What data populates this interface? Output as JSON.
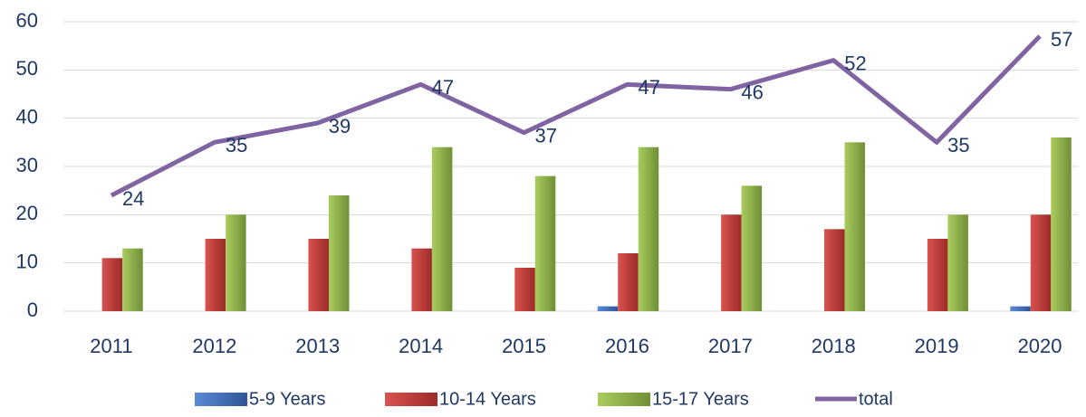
{
  "chart_data": {
    "type": "bar-line",
    "categories": [
      "2011",
      "2012",
      "2013",
      "2014",
      "2015",
      "2016",
      "2017",
      "2018",
      "2019",
      "2020"
    ],
    "series": [
      {
        "name": "5-9 Years",
        "type": "bar",
        "color": "#4472c4",
        "values": [
          0,
          0,
          0,
          0,
          0,
          1,
          0,
          0,
          0,
          1
        ]
      },
      {
        "name": "10-14 Years",
        "type": "bar",
        "color": "#c0504d",
        "values": [
          11,
          15,
          15,
          13,
          9,
          12,
          20,
          17,
          15,
          20
        ]
      },
      {
        "name": "15-17 Years",
        "type": "bar",
        "color": "#9bbb59",
        "values": [
          13,
          20,
          24,
          34,
          28,
          34,
          26,
          35,
          20,
          36
        ]
      },
      {
        "name": "total",
        "type": "line",
        "color": "#8064a2",
        "values": [
          24,
          35,
          39,
          47,
          37,
          47,
          46,
          52,
          35,
          57
        ],
        "data_labels": true
      }
    ],
    "ylim": [
      0,
      60
    ],
    "yticks": [
      0,
      10,
      20,
      30,
      40,
      50,
      60
    ],
    "grid": true,
    "legend": "bottom"
  }
}
